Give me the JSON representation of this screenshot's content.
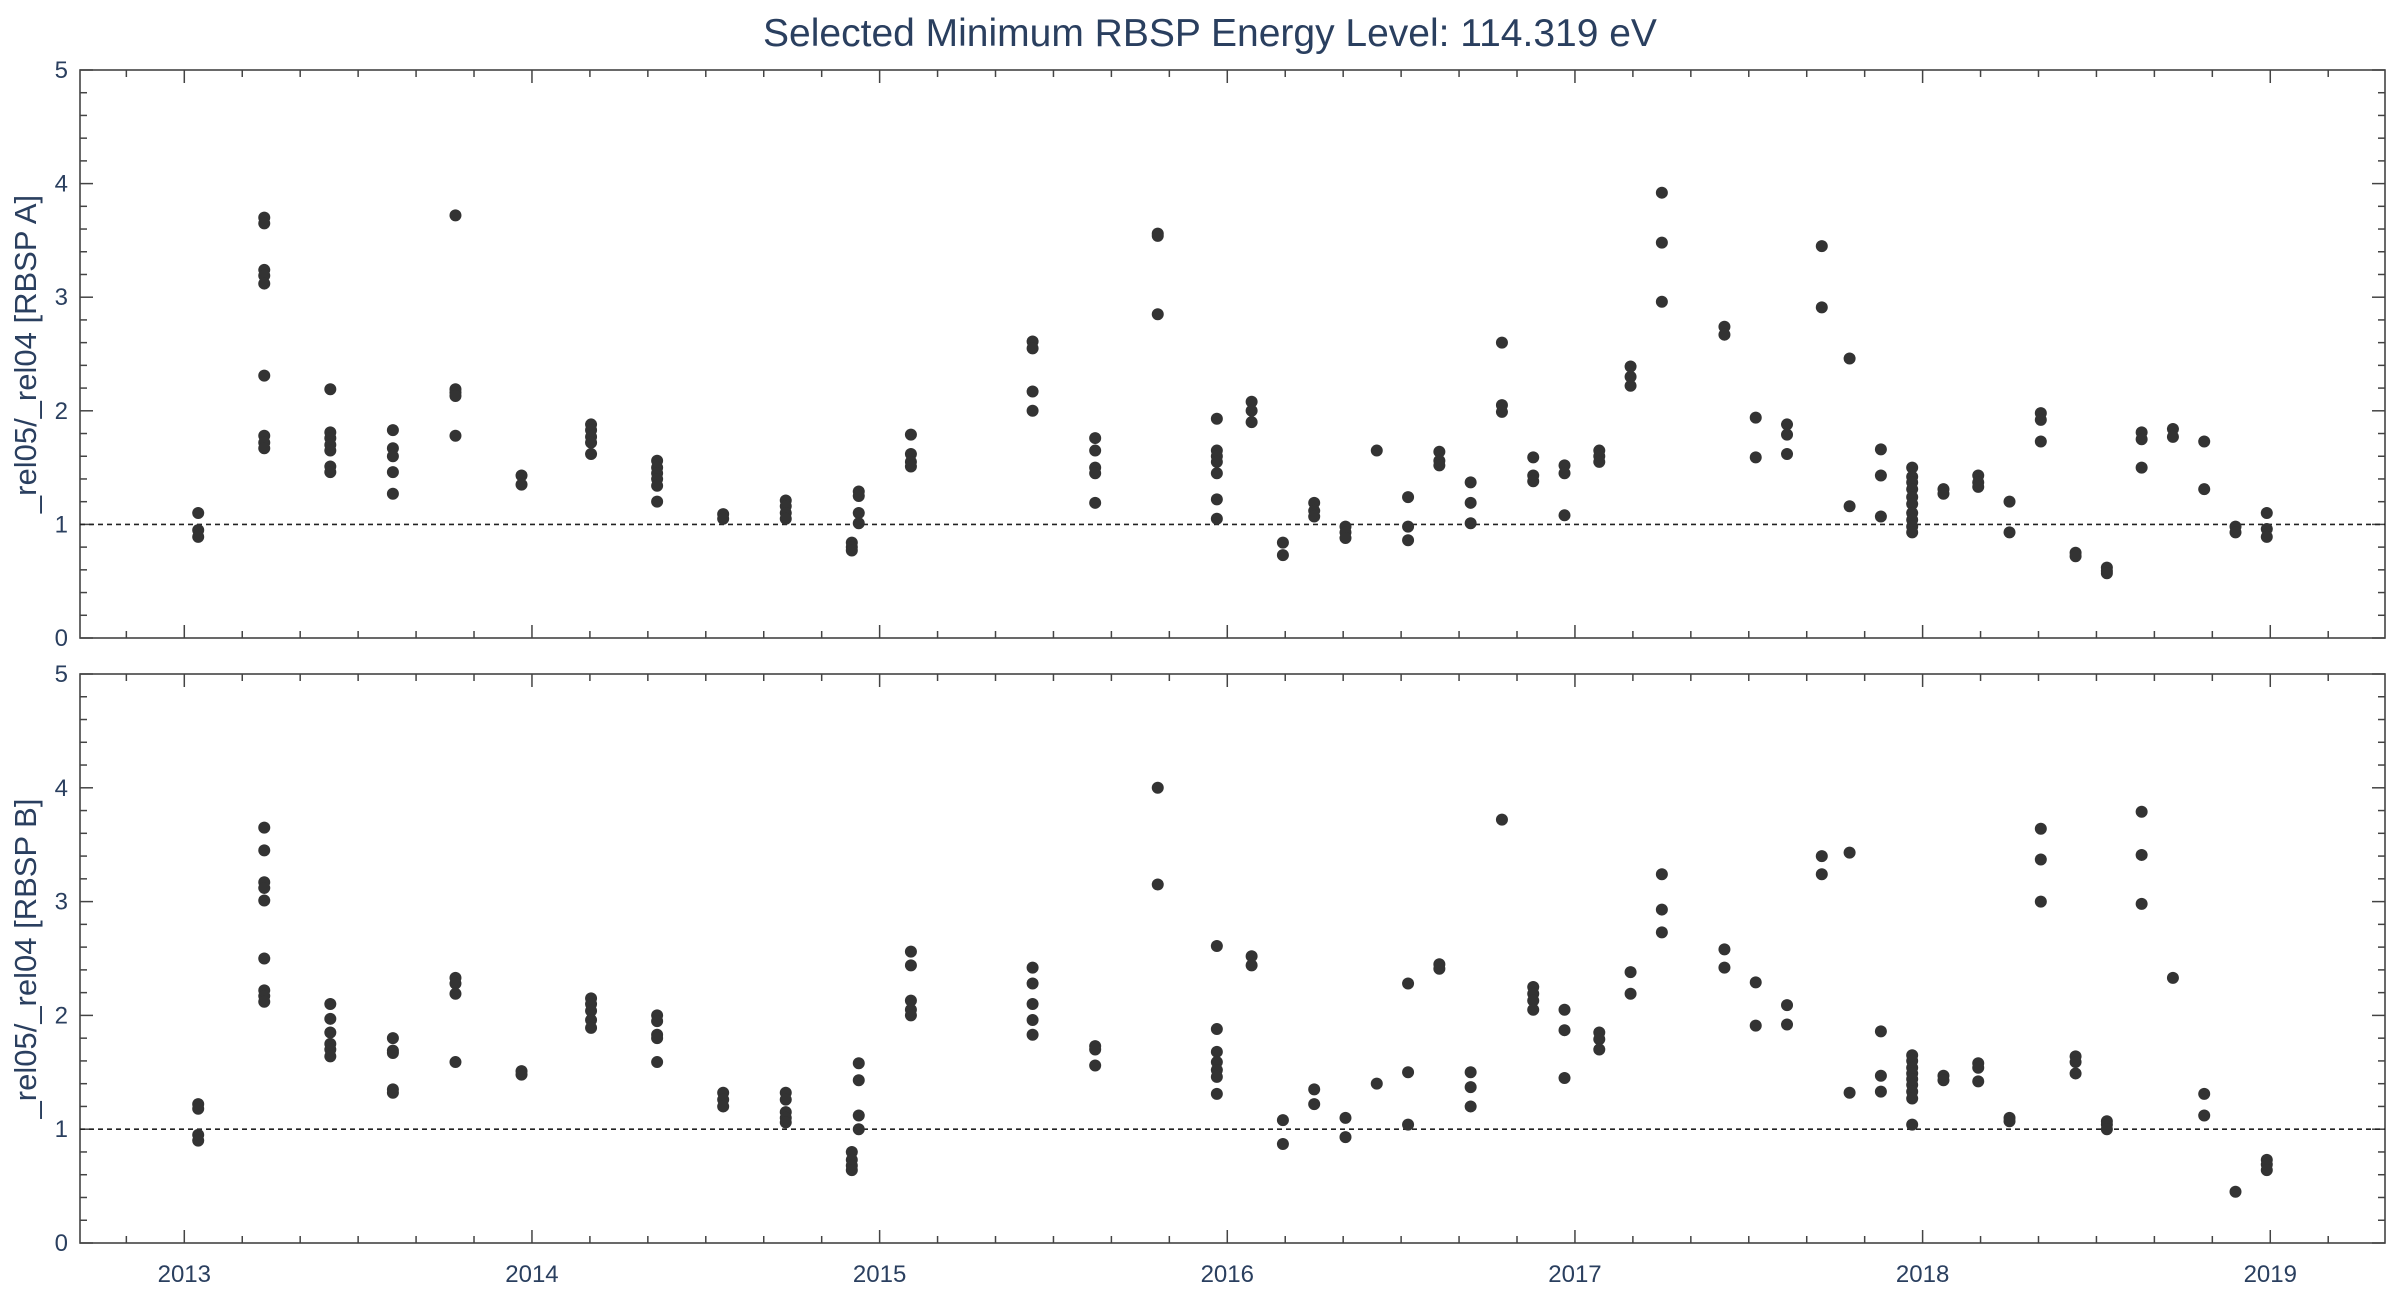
{
  "chart_data": [
    {
      "type": "scatter",
      "title": "Selected Minimum RBSP Energy Level: 114.319 eV",
      "ylabel": "_rel05/_rel04 [RBSP A]",
      "xlabel": "",
      "xlim": [
        2012.7,
        2019.33
      ],
      "ylim": [
        0,
        5
      ],
      "x_tick_labels": [
        "2013",
        "2014",
        "2015",
        "2016",
        "2017",
        "2018",
        "2019"
      ],
      "y_tick_labels": [
        "0",
        "1",
        "2",
        "3",
        "4",
        "5"
      ],
      "reference_line": {
        "y": 1,
        "style": "dashed"
      },
      "grid": false,
      "marker_color": "#333333",
      "points": [
        [
          2013.04,
          1.1
        ],
        [
          2013.04,
          0.95
        ],
        [
          2013.04,
          0.89
        ],
        [
          2013.23,
          3.7
        ],
        [
          2013.23,
          3.65
        ],
        [
          2013.23,
          3.24
        ],
        [
          2013.23,
          3.19
        ],
        [
          2013.23,
          3.12
        ],
        [
          2013.23,
          2.31
        ],
        [
          2013.23,
          1.78
        ],
        [
          2013.23,
          1.72
        ],
        [
          2013.23,
          1.67
        ],
        [
          2013.42,
          2.19
        ],
        [
          2013.42,
          1.81
        ],
        [
          2013.42,
          1.76
        ],
        [
          2013.42,
          1.7
        ],
        [
          2013.42,
          1.65
        ],
        [
          2013.42,
          1.51
        ],
        [
          2013.42,
          1.46
        ],
        [
          2013.6,
          1.83
        ],
        [
          2013.6,
          1.67
        ],
        [
          2013.6,
          1.6
        ],
        [
          2013.6,
          1.46
        ],
        [
          2013.6,
          1.27
        ],
        [
          2013.78,
          3.72
        ],
        [
          2013.78,
          2.19
        ],
        [
          2013.78,
          2.16
        ],
        [
          2013.78,
          2.13
        ],
        [
          2013.78,
          1.78
        ],
        [
          2013.97,
          1.43
        ],
        [
          2013.97,
          1.35
        ],
        [
          2014.17,
          1.88
        ],
        [
          2014.17,
          1.83
        ],
        [
          2014.17,
          1.77
        ],
        [
          2014.17,
          1.72
        ],
        [
          2014.17,
          1.62
        ],
        [
          2014.36,
          1.56
        ],
        [
          2014.36,
          1.5
        ],
        [
          2014.36,
          1.45
        ],
        [
          2014.36,
          1.4
        ],
        [
          2014.36,
          1.34
        ],
        [
          2014.36,
          1.2
        ],
        [
          2014.55,
          1.09
        ],
        [
          2014.55,
          1.05
        ],
        [
          2014.73,
          1.21
        ],
        [
          2014.73,
          1.16
        ],
        [
          2014.73,
          1.1
        ],
        [
          2014.73,
          1.05
        ],
        [
          2014.92,
          0.84
        ],
        [
          2014.92,
          0.8
        ],
        [
          2014.92,
          0.77
        ],
        [
          2014.94,
          1.29
        ],
        [
          2014.94,
          1.25
        ],
        [
          2014.94,
          1.1
        ],
        [
          2014.94,
          1.01
        ],
        [
          2015.09,
          1.79
        ],
        [
          2015.09,
          1.62
        ],
        [
          2015.09,
          1.55
        ],
        [
          2015.09,
          1.51
        ],
        [
          2015.44,
          2.61
        ],
        [
          2015.44,
          2.55
        ],
        [
          2015.44,
          2.17
        ],
        [
          2015.44,
          2.0
        ],
        [
          2015.62,
          1.76
        ],
        [
          2015.62,
          1.65
        ],
        [
          2015.62,
          1.5
        ],
        [
          2015.62,
          1.45
        ],
        [
          2015.62,
          1.19
        ],
        [
          2015.8,
          3.56
        ],
        [
          2015.8,
          3.54
        ],
        [
          2015.8,
          2.85
        ],
        [
          2015.97,
          1.93
        ],
        [
          2015.97,
          1.65
        ],
        [
          2015.97,
          1.6
        ],
        [
          2015.97,
          1.55
        ],
        [
          2015.97,
          1.45
        ],
        [
          2015.97,
          1.22
        ],
        [
          2015.97,
          1.05
        ],
        [
          2016.07,
          2.08
        ],
        [
          2016.07,
          2.0
        ],
        [
          2016.07,
          1.9
        ],
        [
          2016.16,
          0.84
        ],
        [
          2016.16,
          0.73
        ],
        [
          2016.25,
          1.19
        ],
        [
          2016.25,
          1.12
        ],
        [
          2016.25,
          1.07
        ],
        [
          2016.34,
          0.98
        ],
        [
          2016.34,
          0.93
        ],
        [
          2016.34,
          0.88
        ],
        [
          2016.43,
          1.65
        ],
        [
          2016.52,
          1.24
        ],
        [
          2016.52,
          0.98
        ],
        [
          2016.52,
          0.86
        ],
        [
          2016.61,
          1.64
        ],
        [
          2016.61,
          1.56
        ],
        [
          2016.61,
          1.52
        ],
        [
          2016.7,
          1.37
        ],
        [
          2016.7,
          1.19
        ],
        [
          2016.7,
          1.01
        ],
        [
          2016.79,
          2.6
        ],
        [
          2016.79,
          2.05
        ],
        [
          2016.79,
          1.99
        ],
        [
          2016.88,
          1.59
        ],
        [
          2016.88,
          1.43
        ],
        [
          2016.88,
          1.38
        ],
        [
          2016.97,
          1.52
        ],
        [
          2016.97,
          1.45
        ],
        [
          2016.97,
          1.08
        ],
        [
          2017.07,
          1.65
        ],
        [
          2017.07,
          1.6
        ],
        [
          2017.07,
          1.55
        ],
        [
          2017.16,
          2.39
        ],
        [
          2017.16,
          2.3
        ],
        [
          2017.16,
          2.22
        ],
        [
          2017.25,
          3.92
        ],
        [
          2017.25,
          3.48
        ],
        [
          2017.25,
          2.96
        ],
        [
          2017.43,
          2.74
        ],
        [
          2017.43,
          2.67
        ],
        [
          2017.52,
          1.94
        ],
        [
          2017.52,
          1.59
        ],
        [
          2017.61,
          1.88
        ],
        [
          2017.61,
          1.79
        ],
        [
          2017.61,
          1.62
        ],
        [
          2017.71,
          3.45
        ],
        [
          2017.71,
          2.91
        ],
        [
          2017.79,
          2.46
        ],
        [
          2017.79,
          1.16
        ],
        [
          2017.88,
          1.66
        ],
        [
          2017.88,
          1.43
        ],
        [
          2017.88,
          1.07
        ],
        [
          2017.97,
          1.5
        ],
        [
          2017.97,
          1.42
        ],
        [
          2017.97,
          1.37
        ],
        [
          2017.97,
          1.31
        ],
        [
          2017.97,
          1.24
        ],
        [
          2017.97,
          1.18
        ],
        [
          2017.97,
          1.1
        ],
        [
          2017.97,
          1.04
        ],
        [
          2017.97,
          0.98
        ],
        [
          2017.97,
          0.93
        ],
        [
          2018.06,
          1.31
        ],
        [
          2018.06,
          1.27
        ],
        [
          2018.16,
          1.43
        ],
        [
          2018.16,
          1.37
        ],
        [
          2018.16,
          1.33
        ],
        [
          2018.25,
          1.2
        ],
        [
          2018.25,
          0.93
        ],
        [
          2018.34,
          1.98
        ],
        [
          2018.34,
          1.92
        ],
        [
          2018.34,
          1.73
        ],
        [
          2018.44,
          0.75
        ],
        [
          2018.44,
          0.72
        ],
        [
          2018.53,
          0.62
        ],
        [
          2018.53,
          0.59
        ],
        [
          2018.53,
          0.57
        ],
        [
          2018.63,
          1.81
        ],
        [
          2018.63,
          1.75
        ],
        [
          2018.63,
          1.5
        ],
        [
          2018.72,
          1.84
        ],
        [
          2018.72,
          1.77
        ],
        [
          2018.81,
          1.73
        ],
        [
          2018.81,
          1.31
        ],
        [
          2018.9,
          0.98
        ],
        [
          2018.9,
          0.93
        ],
        [
          2018.99,
          1.1
        ],
        [
          2018.99,
          0.96
        ],
        [
          2018.99,
          0.89
        ]
      ]
    },
    {
      "type": "scatter",
      "title": "",
      "ylabel": "_rel05/_rel04 [RBSP B]",
      "xlabel": "",
      "xlim": [
        2012.7,
        2019.33
      ],
      "ylim": [
        0,
        5
      ],
      "x_tick_labels": [
        "2013",
        "2014",
        "2015",
        "2016",
        "2017",
        "2018",
        "2019"
      ],
      "y_tick_labels": [
        "0",
        "1",
        "2",
        "3",
        "4",
        "5"
      ],
      "reference_line": {
        "y": 1,
        "style": "dashed"
      },
      "grid": false,
      "marker_color": "#333333",
      "points": [
        [
          2013.04,
          1.22
        ],
        [
          2013.04,
          1.18
        ],
        [
          2013.04,
          0.95
        ],
        [
          2013.04,
          0.9
        ],
        [
          2013.23,
          3.65
        ],
        [
          2013.23,
          3.45
        ],
        [
          2013.23,
          3.17
        ],
        [
          2013.23,
          3.12
        ],
        [
          2013.23,
          3.01
        ],
        [
          2013.23,
          2.5
        ],
        [
          2013.23,
          2.22
        ],
        [
          2013.23,
          2.17
        ],
        [
          2013.23,
          2.12
        ],
        [
          2013.42,
          2.1
        ],
        [
          2013.42,
          1.97
        ],
        [
          2013.42,
          1.85
        ],
        [
          2013.42,
          1.75
        ],
        [
          2013.42,
          1.7
        ],
        [
          2013.42,
          1.64
        ],
        [
          2013.6,
          1.8
        ],
        [
          2013.6,
          1.69
        ],
        [
          2013.6,
          1.67
        ],
        [
          2013.6,
          1.35
        ],
        [
          2013.6,
          1.32
        ],
        [
          2013.78,
          2.33
        ],
        [
          2013.78,
          2.28
        ],
        [
          2013.78,
          2.19
        ],
        [
          2013.78,
          1.59
        ],
        [
          2013.97,
          1.51
        ],
        [
          2013.97,
          1.48
        ],
        [
          2014.17,
          2.15
        ],
        [
          2014.17,
          2.1
        ],
        [
          2014.17,
          2.04
        ],
        [
          2014.17,
          1.96
        ],
        [
          2014.17,
          1.89
        ],
        [
          2014.36,
          2.0
        ],
        [
          2014.36,
          1.95
        ],
        [
          2014.36,
          1.83
        ],
        [
          2014.36,
          1.8
        ],
        [
          2014.36,
          1.59
        ],
        [
          2014.55,
          1.32
        ],
        [
          2014.55,
          1.26
        ],
        [
          2014.55,
          1.2
        ],
        [
          2014.73,
          1.32
        ],
        [
          2014.73,
          1.26
        ],
        [
          2014.73,
          1.15
        ],
        [
          2014.73,
          1.1
        ],
        [
          2014.73,
          1.06
        ],
        [
          2014.92,
          0.8
        ],
        [
          2014.92,
          0.73
        ],
        [
          2014.92,
          0.68
        ],
        [
          2014.92,
          0.64
        ],
        [
          2014.94,
          1.58
        ],
        [
          2014.94,
          1.43
        ],
        [
          2014.94,
          1.12
        ],
        [
          2014.94,
          1.0
        ],
        [
          2015.09,
          2.56
        ],
        [
          2015.09,
          2.44
        ],
        [
          2015.09,
          2.13
        ],
        [
          2015.09,
          2.05
        ],
        [
          2015.09,
          2.0
        ],
        [
          2015.44,
          2.42
        ],
        [
          2015.44,
          2.28
        ],
        [
          2015.44,
          2.1
        ],
        [
          2015.44,
          1.96
        ],
        [
          2015.44,
          1.83
        ],
        [
          2015.62,
          1.73
        ],
        [
          2015.62,
          1.7
        ],
        [
          2015.62,
          1.56
        ],
        [
          2015.8,
          4.0
        ],
        [
          2015.8,
          3.15
        ],
        [
          2015.97,
          2.61
        ],
        [
          2015.97,
          1.88
        ],
        [
          2015.97,
          1.68
        ],
        [
          2015.97,
          1.59
        ],
        [
          2015.97,
          1.52
        ],
        [
          2015.97,
          1.46
        ],
        [
          2015.97,
          1.31
        ],
        [
          2016.07,
          2.52
        ],
        [
          2016.07,
          2.44
        ],
        [
          2016.16,
          1.08
        ],
        [
          2016.16,
          0.87
        ],
        [
          2016.25,
          1.35
        ],
        [
          2016.25,
          1.22
        ],
        [
          2016.34,
          1.1
        ],
        [
          2016.34,
          0.93
        ],
        [
          2016.43,
          1.4
        ],
        [
          2016.52,
          2.28
        ],
        [
          2016.52,
          1.5
        ],
        [
          2016.52,
          1.04
        ],
        [
          2016.61,
          2.45
        ],
        [
          2016.61,
          2.41
        ],
        [
          2016.7,
          1.5
        ],
        [
          2016.7,
          1.37
        ],
        [
          2016.7,
          1.2
        ],
        [
          2016.79,
          3.72
        ],
        [
          2016.88,
          2.25
        ],
        [
          2016.88,
          2.19
        ],
        [
          2016.88,
          2.13
        ],
        [
          2016.88,
          2.05
        ],
        [
          2016.97,
          2.05
        ],
        [
          2016.97,
          1.87
        ],
        [
          2016.97,
          1.45
        ],
        [
          2017.07,
          1.85
        ],
        [
          2017.07,
          1.79
        ],
        [
          2017.07,
          1.7
        ],
        [
          2017.16,
          2.38
        ],
        [
          2017.16,
          2.19
        ],
        [
          2017.25,
          3.24
        ],
        [
          2017.25,
          2.93
        ],
        [
          2017.25,
          2.73
        ],
        [
          2017.43,
          2.58
        ],
        [
          2017.43,
          2.42
        ],
        [
          2017.52,
          2.29
        ],
        [
          2017.52,
          1.91
        ],
        [
          2017.61,
          2.09
        ],
        [
          2017.61,
          1.92
        ],
        [
          2017.71,
          3.4
        ],
        [
          2017.71,
          3.24
        ],
        [
          2017.79,
          3.43
        ],
        [
          2017.79,
          1.32
        ],
        [
          2017.88,
          1.86
        ],
        [
          2017.88,
          1.47
        ],
        [
          2017.88,
          1.33
        ],
        [
          2017.97,
          1.65
        ],
        [
          2017.97,
          1.6
        ],
        [
          2017.97,
          1.54
        ],
        [
          2017.97,
          1.49
        ],
        [
          2017.97,
          1.44
        ],
        [
          2017.97,
          1.39
        ],
        [
          2017.97,
          1.33
        ],
        [
          2017.97,
          1.27
        ],
        [
          2017.97,
          1.04
        ],
        [
          2018.06,
          1.47
        ],
        [
          2018.06,
          1.43
        ],
        [
          2018.16,
          1.58
        ],
        [
          2018.16,
          1.54
        ],
        [
          2018.16,
          1.42
        ],
        [
          2018.25,
          1.1
        ],
        [
          2018.25,
          1.07
        ],
        [
          2018.34,
          3.64
        ],
        [
          2018.34,
          3.37
        ],
        [
          2018.34,
          3.0
        ],
        [
          2018.44,
          1.64
        ],
        [
          2018.44,
          1.59
        ],
        [
          2018.44,
          1.49
        ],
        [
          2018.53,
          1.07
        ],
        [
          2018.53,
          1.04
        ],
        [
          2018.53,
          1.0
        ],
        [
          2018.63,
          3.79
        ],
        [
          2018.63,
          3.41
        ],
        [
          2018.63,
          2.98
        ],
        [
          2018.72,
          2.33
        ],
        [
          2018.81,
          1.31
        ],
        [
          2018.81,
          1.12
        ],
        [
          2018.9,
          0.45
        ],
        [
          2018.99,
          0.73
        ],
        [
          2018.99,
          0.69
        ],
        [
          2018.99,
          0.64
        ]
      ]
    }
  ]
}
